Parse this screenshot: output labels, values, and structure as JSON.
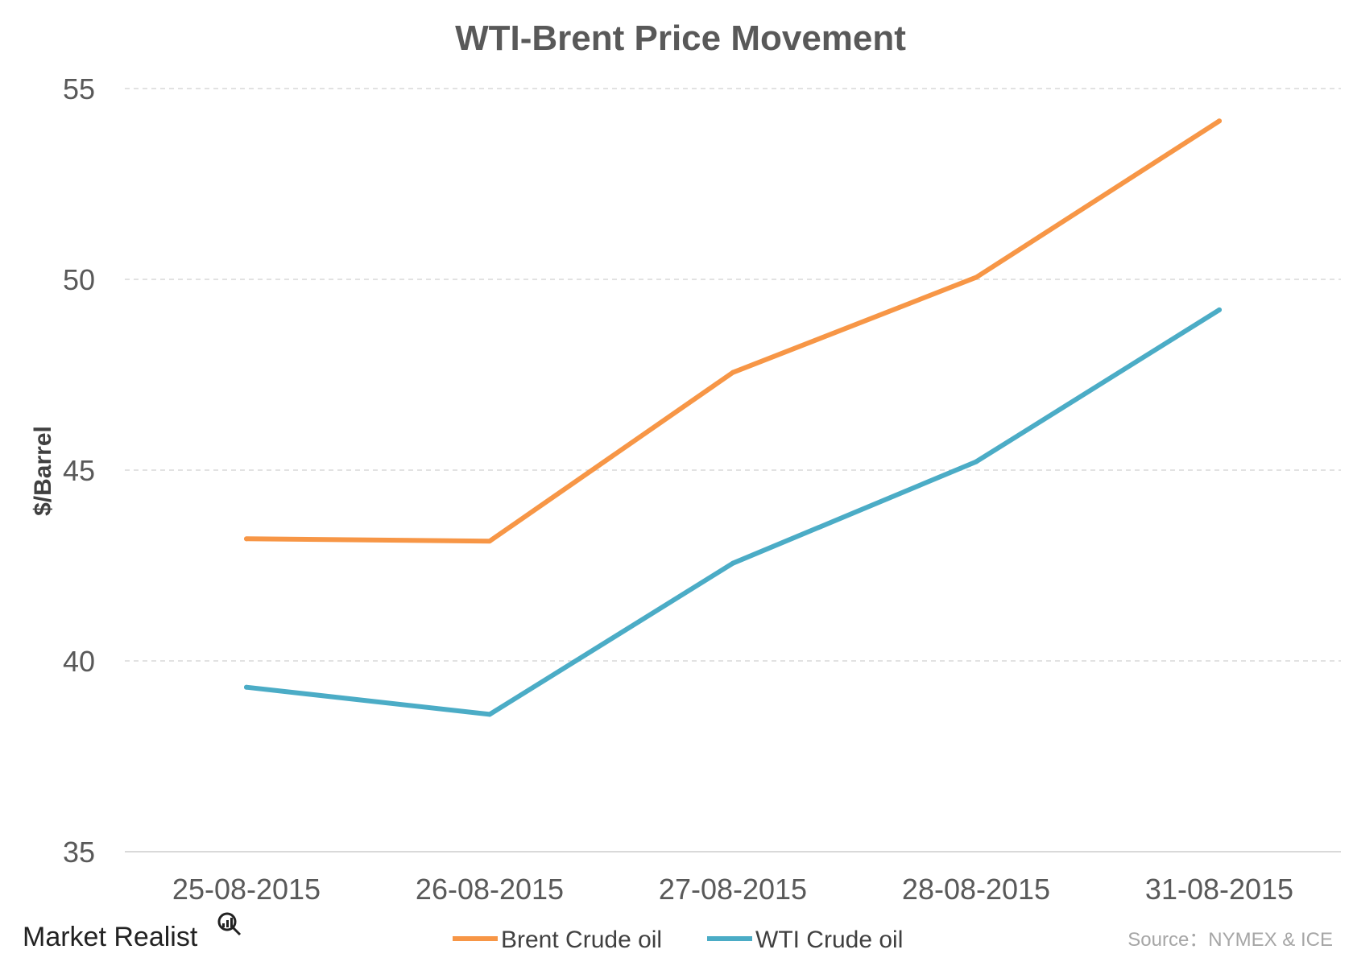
{
  "chart_data": {
    "type": "line",
    "title": "WTI-Brent Price Movement",
    "xlabel": "",
    "ylabel": "$/Barrel",
    "categories": [
      "25-08-2015",
      "26-08-2015",
      "27-08-2015",
      "28-08-2015",
      "31-08-2015"
    ],
    "series": [
      {
        "name": "Brent Crude oil",
        "color": "#f79646",
        "values": [
          43.2,
          43.14,
          47.56,
          50.05,
          54.15
        ]
      },
      {
        "name": "WTI Crude oil",
        "color": "#4bacc6",
        "values": [
          39.31,
          38.6,
          42.56,
          45.22,
          49.2
        ]
      }
    ],
    "ylim": [
      35,
      55
    ],
    "yticks": [
      35,
      40,
      45,
      50,
      55
    ],
    "grid": true,
    "legend_position": "bottom"
  },
  "footer": {
    "brand": "Market Realist",
    "source": "Source：NYMEX & ICE"
  }
}
